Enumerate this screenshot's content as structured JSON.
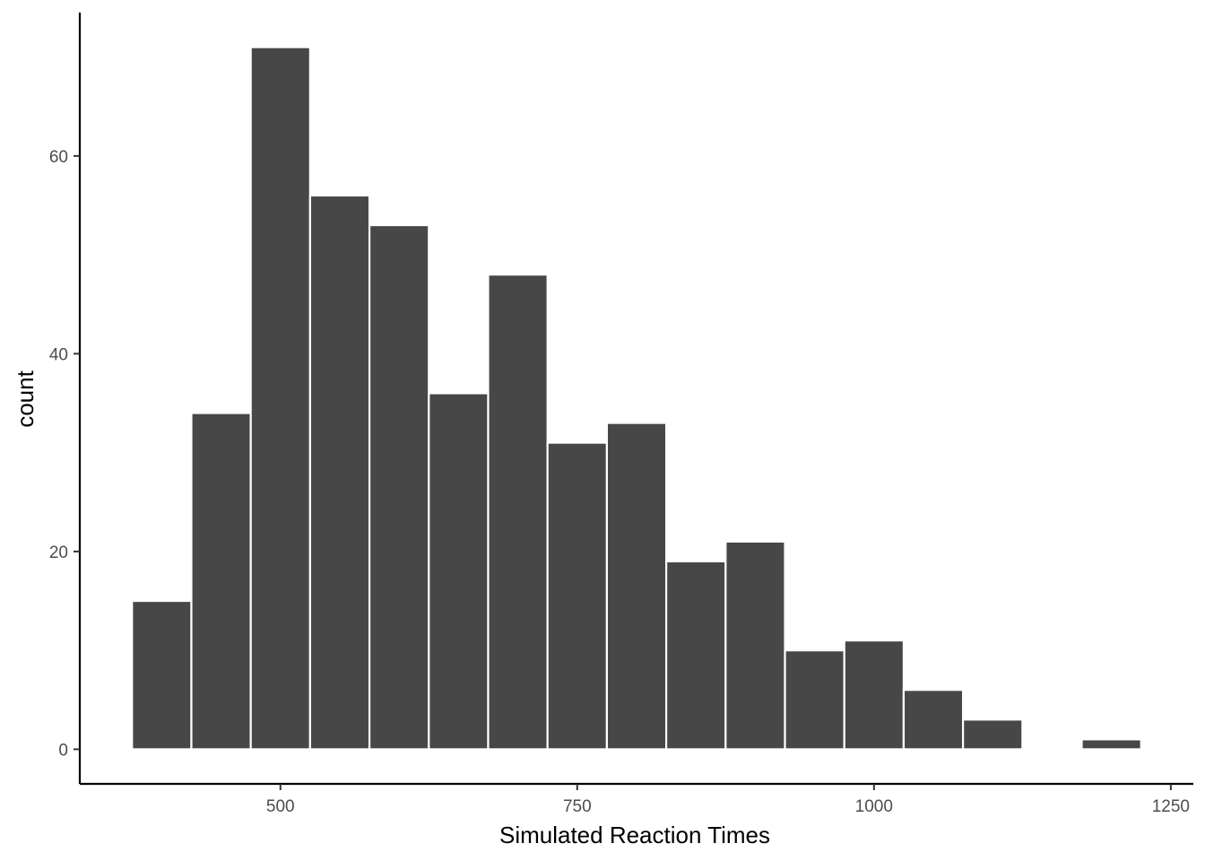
{
  "chart_data": {
    "type": "bar",
    "subtype": "histogram",
    "title": "",
    "xlabel": "Simulated Reaction Times",
    "ylabel": "count",
    "bin_width": 50,
    "bins": [
      {
        "x_start": 375,
        "x_end": 425,
        "count": 15
      },
      {
        "x_start": 425,
        "x_end": 475,
        "count": 34
      },
      {
        "x_start": 475,
        "x_end": 525,
        "count": 71
      },
      {
        "x_start": 525,
        "x_end": 575,
        "count": 56
      },
      {
        "x_start": 575,
        "x_end": 625,
        "count": 53
      },
      {
        "x_start": 625,
        "x_end": 675,
        "count": 36
      },
      {
        "x_start": 675,
        "x_end": 725,
        "count": 48
      },
      {
        "x_start": 725,
        "x_end": 775,
        "count": 31
      },
      {
        "x_start": 775,
        "x_end": 825,
        "count": 33
      },
      {
        "x_start": 825,
        "x_end": 875,
        "count": 19
      },
      {
        "x_start": 875,
        "x_end": 925,
        "count": 21
      },
      {
        "x_start": 925,
        "x_end": 975,
        "count": 10
      },
      {
        "x_start": 975,
        "x_end": 1025,
        "count": 11
      },
      {
        "x_start": 1025,
        "x_end": 1075,
        "count": 6
      },
      {
        "x_start": 1075,
        "x_end": 1125,
        "count": 3
      },
      {
        "x_start": 1125,
        "x_end": 1175,
        "count": 0
      },
      {
        "x_start": 1175,
        "x_end": 1225,
        "count": 1
      }
    ],
    "xlim": [
      331,
      1269
    ],
    "ylim": [
      -3.5,
      74.5
    ],
    "x_ticks": [
      {
        "value": 500,
        "label": "500"
      },
      {
        "value": 750,
        "label": "750"
      },
      {
        "value": 1000,
        "label": "1000"
      },
      {
        "value": 1250,
        "label": "1250"
      }
    ],
    "y_ticks": [
      {
        "value": 0,
        "label": "0"
      },
      {
        "value": 20,
        "label": "20"
      },
      {
        "value": 40,
        "label": "40"
      },
      {
        "value": 60,
        "label": "60"
      }
    ],
    "grid": false,
    "legend": "none",
    "colors": {
      "bar_fill": "#474747",
      "bar_outline": "#ffffff",
      "axis_line": "#000000",
      "tick_label": "#4d4d4d"
    }
  }
}
